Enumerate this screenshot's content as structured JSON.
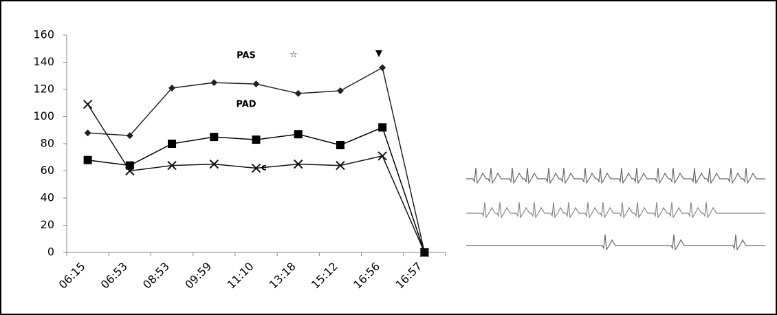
{
  "chart_data": {
    "type": "line",
    "categories": [
      "06:15",
      "06:53",
      "08:53",
      "09:59",
      "11:10",
      "13:18",
      "15:12",
      "16:56",
      "16:57"
    ],
    "series": [
      {
        "color": "#222222",
        "marker": "diamond",
        "values": [
          88,
          86,
          121,
          125,
          124,
          117,
          119,
          136,
          0
        ]
      },
      {
        "color": "#000000",
        "marker": "square",
        "values": [
          68,
          64,
          80,
          85,
          83,
          87,
          79,
          92,
          0
        ]
      },
      {
        "color": "#111111",
        "marker": "x",
        "values": [
          109,
          60,
          64,
          65,
          62,
          65,
          64,
          71,
          0
        ]
      }
    ],
    "ylim": [
      0,
      160
    ],
    "yticks": [
      0,
      20,
      40,
      60,
      80,
      100,
      120,
      140,
      160
    ],
    "annotations": [
      "PAS",
      "☆",
      "▼",
      "PAD",
      "c"
    ]
  }
}
